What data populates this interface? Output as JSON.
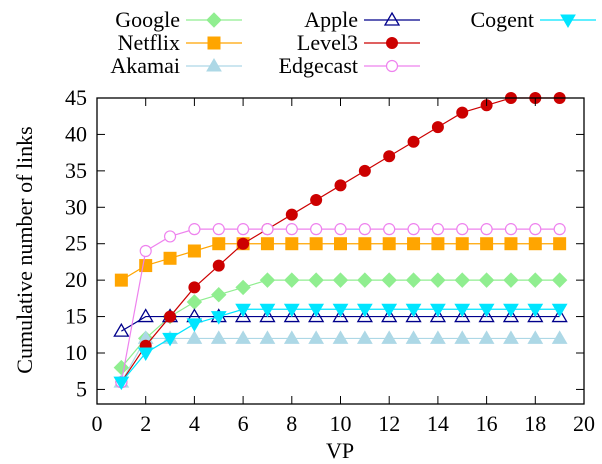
{
  "chart_data": {
    "type": "line",
    "xlabel": "VP",
    "ylabel": "Cumulative number of links",
    "xlim": [
      0,
      20
    ],
    "ylim": [
      3,
      45
    ],
    "xticks": [
      0,
      2,
      4,
      6,
      8,
      10,
      12,
      14,
      16,
      18,
      20
    ],
    "yticks": [
      5,
      10,
      15,
      20,
      25,
      30,
      35,
      40,
      45
    ],
    "grid": false,
    "legend_position": "top (outside, above plot)",
    "x": [
      1,
      2,
      3,
      4,
      5,
      6,
      7,
      8,
      9,
      10,
      11,
      12,
      13,
      14,
      15,
      16,
      17,
      18,
      19
    ],
    "series": [
      {
        "name": "Google",
        "color": "#90ee90",
        "marker": "diamond-filled",
        "values": [
          8,
          12,
          15,
          17,
          18,
          19,
          20,
          20,
          20,
          20,
          20,
          20,
          20,
          20,
          20,
          20,
          20,
          20,
          20
        ]
      },
      {
        "name": "Netflix",
        "color": "#ffa500",
        "marker": "square-filled",
        "values": [
          20,
          22,
          23,
          24,
          25,
          25,
          25,
          25,
          25,
          25,
          25,
          25,
          25,
          25,
          25,
          25,
          25,
          25,
          25
        ]
      },
      {
        "name": "Akamai",
        "color": "#add8e6",
        "marker": "triangle-up-filled",
        "values": [
          6,
          12,
          12,
          12,
          12,
          12,
          12,
          12,
          12,
          12,
          12,
          12,
          12,
          12,
          12,
          12,
          12,
          12,
          12
        ]
      },
      {
        "name": "Apple",
        "color": "#00008b",
        "marker": "triangle-up-open",
        "values": [
          13,
          15,
          15,
          15,
          15,
          15,
          15,
          15,
          15,
          15,
          15,
          15,
          15,
          15,
          15,
          15,
          15,
          15,
          15
        ]
      },
      {
        "name": "Level3",
        "color": "#cc0000",
        "marker": "circle-filled",
        "values": [
          6,
          11,
          15,
          19,
          22,
          25,
          27,
          29,
          31,
          33,
          35,
          37,
          39,
          41,
          43,
          44,
          45,
          45,
          45
        ]
      },
      {
        "name": "Edgecast",
        "color": "#ee82ee",
        "marker": "circle-open",
        "values": [
          6,
          24,
          26,
          27,
          27,
          27,
          27,
          27,
          27,
          27,
          27,
          27,
          27,
          27,
          27,
          27,
          27,
          27,
          27
        ]
      },
      {
        "name": "Cogent",
        "color": "#00e5ff",
        "marker": "triangle-down-filled",
        "values": [
          6,
          10,
          12,
          14,
          15,
          16,
          16,
          16,
          16,
          16,
          16,
          16,
          16,
          16,
          16,
          16,
          16,
          16,
          16
        ]
      }
    ]
  }
}
